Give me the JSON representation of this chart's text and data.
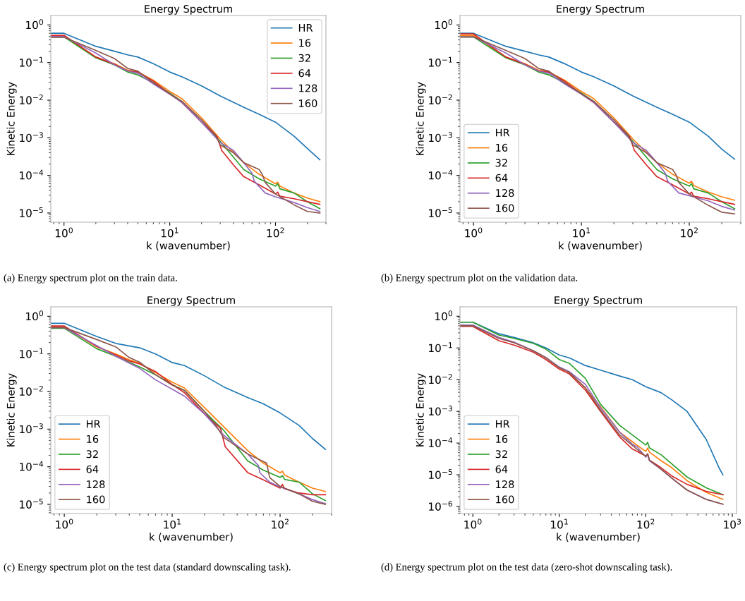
{
  "chart_data": [
    {
      "type": "line",
      "title": "Energy Spectrum",
      "xlabel": "k (wavenumber)",
      "ylabel": "Kinetic Energy",
      "log": "xy",
      "legend": "top right",
      "xlim": [
        0.75,
        300
      ],
      "ylim": [
        5.7e-06,
        1.78
      ],
      "xticks": [
        {
          "value": 1,
          "label": "10$^{0}$"
        },
        {
          "value": 10,
          "label": "10$^{1}$"
        },
        {
          "value": 100,
          "label": "10$^{2}$"
        }
      ],
      "yticks": [
        {
          "value": 1e-05,
          "label": "10$^{−5}$"
        },
        {
          "value": 0.0001,
          "label": "10$^{−4}$"
        },
        {
          "value": 0.001,
          "label": "10$^{−3}$"
        },
        {
          "value": 0.01,
          "label": "10$^{−2}$"
        },
        {
          "value": 0.1,
          "label": "10$^{−1}$"
        },
        {
          "value": 1,
          "label": "10$^{0}$"
        }
      ],
      "annotations": [
        "(a) Energy spectrum plot on the train data."
      ],
      "series": [
        {
          "name": "HR",
          "color": "#1f77b4",
          "x": [
            0.76,
            1,
            2,
            3,
            4,
            5,
            7,
            10,
            13,
            20,
            30,
            50,
            70,
            100,
            150,
            200,
            263
          ],
          "values": [
            0.6,
            0.6,
            0.27,
            0.2,
            0.16,
            0.14,
            0.093,
            0.056,
            0.042,
            0.024,
            0.013,
            0.0065,
            0.0042,
            0.0026,
            0.0011,
            0.00052,
            0.00026
          ]
        },
        {
          "name": "16",
          "color": "#ff7f0e",
          "x": [
            0.76,
            1,
            2,
            3,
            4,
            5,
            7,
            10,
            13,
            20,
            30,
            50,
            70,
            100,
            105,
            110,
            150,
            200,
            263
          ],
          "values": [
            0.52,
            0.52,
            0.14,
            0.093,
            0.063,
            0.056,
            0.034,
            0.017,
            0.011,
            0.0034,
            0.00093,
            0.00022,
            0.000107,
            6e-05,
            6.6e-05,
            5.2e-05,
            3.4e-05,
            2.5e-05,
            2e-05
          ]
        },
        {
          "name": "32",
          "color": "#2ca02c",
          "x": [
            0.76,
            1,
            2,
            3,
            4,
            5,
            7,
            10,
            13,
            20,
            30,
            50,
            70,
            100,
            105,
            110,
            150,
            200,
            263
          ],
          "values": [
            0.48,
            0.48,
            0.133,
            0.087,
            0.056,
            0.047,
            0.029,
            0.0155,
            0.0093,
            0.0026,
            0.00081,
            0.000144,
            8.1e-05,
            5.2e-05,
            6e-05,
            4.4e-05,
            3.4e-05,
            2e-05,
            1.3e-05
          ]
        },
        {
          "name": "64",
          "color": "#d62728",
          "x": [
            0.76,
            1,
            2,
            3,
            4,
            5,
            7,
            10,
            13,
            20,
            28,
            31,
            40,
            50,
            70,
            100,
            105,
            110,
            150,
            200,
            263
          ],
          "values": [
            0.53,
            0.53,
            0.14,
            0.09,
            0.06,
            0.056,
            0.032,
            0.0148,
            0.0087,
            0.0026,
            0.00108,
            0.00046,
            0.00019,
            9.3e-05,
            5.6e-05,
            3.2e-05,
            3.6e-05,
            2.8e-05,
            2.4e-05,
            2e-05,
            1.7e-05
          ]
        },
        {
          "name": "128",
          "color": "#9467bd",
          "x": [
            0.76,
            1,
            2,
            3,
            4,
            5,
            7,
            10,
            13,
            20,
            30,
            40,
            50,
            60,
            63,
            80,
            100,
            150,
            200,
            263
          ],
          "values": [
            0.49,
            0.49,
            0.178,
            0.087,
            0.06,
            0.052,
            0.027,
            0.0144,
            0.0087,
            0.0026,
            0.00075,
            0.00046,
            0.00022,
            0.000115,
            7e-05,
            3.4e-05,
            2.7e-05,
            1.9e-05,
            1.4e-05,
            1.1e-05
          ]
        },
        {
          "name": "160",
          "color": "#8c564b",
          "x": [
            0.76,
            1,
            2,
            3,
            4,
            5,
            7,
            10,
            13,
            20,
            27,
            30,
            40,
            50,
            70,
            75,
            80,
            100,
            150,
            200,
            263
          ],
          "values": [
            0.47,
            0.47,
            0.21,
            0.128,
            0.07,
            0.059,
            0.029,
            0.0148,
            0.0093,
            0.003,
            0.0012,
            0.00065,
            0.0004,
            0.00022,
            0.000144,
            0.000107,
            6.5e-05,
            3.2e-05,
            1.65e-05,
            1.1e-05,
            1e-05
          ]
        }
      ]
    },
    {
      "type": "line",
      "title": "Energy Spectrum",
      "xlabel": "k (wavenumber)",
      "ylabel": "Kinetic Energy",
      "log": "xy",
      "legend": "bottom left",
      "xlim": [
        0.75,
        300
      ],
      "ylim": [
        5.7e-06,
        1.78
      ],
      "xticks": [
        {
          "value": 1,
          "label": "10$^{0}$"
        },
        {
          "value": 10,
          "label": "10$^{1}$"
        },
        {
          "value": 100,
          "label": "10$^{2}$"
        }
      ],
      "yticks": [
        {
          "value": 1e-05,
          "label": "10$^{−5}$"
        },
        {
          "value": 0.0001,
          "label": "10$^{−4}$"
        },
        {
          "value": 0.001,
          "label": "10$^{−3}$"
        },
        {
          "value": 0.01,
          "label": "10$^{−2}$"
        },
        {
          "value": 0.1,
          "label": "10$^{−1}$"
        },
        {
          "value": 1,
          "label": "10$^{0}$"
        }
      ],
      "annotations": [
        "(b) Energy spectrum plot on the validation data."
      ],
      "series": [
        {
          "name": "HR",
          "color": "#1f77b4",
          "x": [
            0.76,
            1,
            2,
            3,
            4,
            5,
            7,
            10,
            13,
            20,
            30,
            50,
            70,
            100,
            150,
            200,
            263
          ],
          "values": [
            0.6,
            0.6,
            0.27,
            0.2,
            0.16,
            0.14,
            0.093,
            0.056,
            0.042,
            0.024,
            0.013,
            0.0065,
            0.0042,
            0.0026,
            0.0011,
            0.0005,
            0.00027
          ]
        },
        {
          "name": "16",
          "color": "#ff7f0e",
          "x": [
            0.76,
            1,
            2,
            3,
            4,
            5,
            7,
            10,
            13,
            20,
            30,
            50,
            70,
            100,
            105,
            110,
            150,
            200,
            263
          ],
          "values": [
            0.53,
            0.53,
            0.14,
            0.093,
            0.063,
            0.056,
            0.034,
            0.017,
            0.011,
            0.0034,
            0.00093,
            0.00022,
            0.000107,
            6.2e-05,
            7e-05,
            5.4e-05,
            3.6e-05,
            2.7e-05,
            2.2e-05
          ]
        },
        {
          "name": "32",
          "color": "#2ca02c",
          "x": [
            0.76,
            1,
            2,
            3,
            4,
            5,
            7,
            10,
            13,
            20,
            30,
            50,
            70,
            100,
            105,
            110,
            150,
            200,
            263
          ],
          "values": [
            0.48,
            0.48,
            0.133,
            0.087,
            0.056,
            0.047,
            0.029,
            0.0155,
            0.0093,
            0.0026,
            0.00081,
            0.000144,
            8.1e-05,
            5.2e-05,
            6e-05,
            4.4e-05,
            3.4e-05,
            2e-05,
            1.3e-05
          ]
        },
        {
          "name": "64",
          "color": "#d62728",
          "x": [
            0.76,
            1,
            2,
            3,
            4,
            5,
            7,
            10,
            13,
            20,
            28,
            31,
            40,
            50,
            70,
            100,
            105,
            110,
            150,
            200,
            263
          ],
          "values": [
            0.58,
            0.58,
            0.14,
            0.09,
            0.06,
            0.056,
            0.032,
            0.0148,
            0.0087,
            0.0026,
            0.00108,
            0.00046,
            0.00019,
            9.3e-05,
            5.6e-05,
            3.2e-05,
            3.6e-05,
            2.8e-05,
            2.4e-05,
            2e-05,
            1.7e-05
          ]
        },
        {
          "name": "128",
          "color": "#9467bd",
          "x": [
            0.76,
            1,
            2,
            3,
            4,
            5,
            7,
            10,
            13,
            20,
            30,
            40,
            50,
            60,
            63,
            80,
            100,
            150,
            200,
            263
          ],
          "values": [
            0.48,
            0.48,
            0.178,
            0.087,
            0.06,
            0.052,
            0.027,
            0.0144,
            0.0087,
            0.0026,
            0.00075,
            0.00046,
            0.00022,
            0.000115,
            7e-05,
            3.4e-05,
            2.9e-05,
            2.1e-05,
            1.5e-05,
            1.2e-05
          ]
        },
        {
          "name": "160",
          "color": "#8c564b",
          "x": [
            0.76,
            1,
            2,
            3,
            4,
            5,
            7,
            10,
            13,
            20,
            27,
            30,
            40,
            50,
            70,
            75,
            80,
            100,
            150,
            200,
            263
          ],
          "values": [
            0.48,
            0.48,
            0.21,
            0.128,
            0.07,
            0.059,
            0.029,
            0.0148,
            0.0093,
            0.003,
            0.0012,
            0.00065,
            0.0004,
            0.00022,
            0.000144,
            0.000107,
            6.5e-05,
            3.2e-05,
            1.6e-05,
            1.05e-05,
            9.5e-06
          ]
        }
      ]
    },
    {
      "type": "line",
      "title": "Energy Spectrum",
      "xlabel": "k (wavenumber)",
      "ylabel": "Kinetic Energy",
      "log": "xy",
      "legend": "bottom left",
      "xlim": [
        0.75,
        300
      ],
      "ylim": [
        5.7e-06,
        1.78
      ],
      "xticks": [
        {
          "value": 1,
          "label": "10$^{0}$"
        },
        {
          "value": 10,
          "label": "10$^{1}$"
        },
        {
          "value": 100,
          "label": "10$^{2}$"
        }
      ],
      "yticks": [
        {
          "value": 1e-05,
          "label": "10$^{−5}$"
        },
        {
          "value": 0.0001,
          "label": "10$^{−4}$"
        },
        {
          "value": 0.001,
          "label": "10$^{−3}$"
        },
        {
          "value": 0.01,
          "label": "10$^{−2}$"
        },
        {
          "value": 0.1,
          "label": "10$^{−1}$"
        },
        {
          "value": 1,
          "label": "10$^{0}$"
        }
      ],
      "annotations": [
        "(c) Energy spectrum plot on the test data (standard downscaling task)."
      ],
      "series": [
        {
          "name": "HR",
          "color": "#1f77b4",
          "x": [
            0.76,
            1,
            2,
            3,
            5,
            7,
            10,
            13,
            20,
            30,
            50,
            70,
            100,
            150,
            200,
            263
          ],
          "values": [
            0.65,
            0.65,
            0.29,
            0.19,
            0.145,
            0.1,
            0.059,
            0.049,
            0.026,
            0.0133,
            0.0069,
            0.0047,
            0.0027,
            0.00125,
            0.00056,
            0.00029
          ]
        },
        {
          "name": "16",
          "color": "#ff7f0e",
          "x": [
            0.76,
            1,
            2,
            3,
            4,
            5,
            7,
            10,
            13,
            20,
            30,
            50,
            70,
            100,
            105,
            110,
            150,
            200,
            263
          ],
          "values": [
            0.52,
            0.52,
            0.154,
            0.1,
            0.07,
            0.056,
            0.032,
            0.0177,
            0.0124,
            0.0037,
            0.00116,
            0.00027,
            0.000125,
            6.9e-05,
            7.6e-05,
            6e-05,
            3.9e-05,
            2.7e-05,
            2.2e-05
          ]
        },
        {
          "name": "32",
          "color": "#2ca02c",
          "x": [
            0.76,
            1,
            2,
            3,
            4,
            5,
            7,
            10,
            13,
            20,
            30,
            50,
            70,
            100,
            105,
            110,
            150,
            200,
            263
          ],
          "values": [
            0.48,
            0.48,
            0.137,
            0.087,
            0.06,
            0.045,
            0.028,
            0.0153,
            0.0107,
            0.0029,
            0.00093,
            0.000144,
            8.1e-05,
            5.2e-05,
            5.8e-05,
            4.6e-05,
            3.9e-05,
            1.9e-05,
            1.26e-05
          ]
        },
        {
          "name": "64",
          "color": "#d62728",
          "x": [
            0.76,
            1,
            2,
            3,
            4,
            5,
            7,
            10,
            13,
            20,
            28,
            31,
            50,
            70,
            100,
            105,
            110,
            150,
            200,
            263
          ],
          "values": [
            0.55,
            0.55,
            0.158,
            0.093,
            0.065,
            0.054,
            0.034,
            0.0153,
            0.0093,
            0.0025,
            0.00107,
            0.00034,
            7e-05,
            4.5e-05,
            2.7e-05,
            3.4e-05,
            2.6e-05,
            2e-05,
            1.8e-05,
            1.8e-05
          ]
        },
        {
          "name": "128",
          "color": "#9467bd",
          "x": [
            0.76,
            1,
            2,
            3,
            4,
            5,
            7,
            10,
            13,
            20,
            30,
            50,
            63,
            65,
            80,
            100,
            150,
            200,
            263
          ],
          "values": [
            0.5,
            0.5,
            0.166,
            0.087,
            0.057,
            0.041,
            0.0205,
            0.0115,
            0.0075,
            0.0025,
            0.00069,
            0.00022,
            0.000107,
            6.9e-05,
            3.9e-05,
            2.9e-05,
            1.9e-05,
            1.33e-05,
            1.04e-05
          ]
        },
        {
          "name": "160",
          "color": "#8c564b",
          "x": [
            0.76,
            1,
            2,
            3,
            4,
            5,
            7,
            10,
            13,
            20,
            25,
            30,
            50,
            75,
            80,
            100,
            150,
            200,
            263
          ],
          "values": [
            0.5,
            0.5,
            0.24,
            0.154,
            0.08,
            0.06,
            0.028,
            0.0147,
            0.0107,
            0.0029,
            0.00133,
            0.0006,
            0.00022,
            0.000125,
            5.2e-05,
            3e-05,
            1.9e-05,
            1.2e-05,
            1e-05
          ]
        }
      ]
    },
    {
      "type": "line",
      "title": "Energy Spectrum",
      "xlabel": "k (wavenumber)",
      "ylabel": "Kinetic Energy",
      "log": "xy",
      "legend": "bottom left",
      "xlim": [
        0.71,
        1120
      ],
      "ylim": [
        6e-07,
        1.98
      ],
      "xticks": [
        {
          "value": 1,
          "label": "10$^{0}$"
        },
        {
          "value": 10,
          "label": "10$^{1}$"
        },
        {
          "value": 100,
          "label": "10$^{2}$"
        },
        {
          "value": 1000,
          "label": "10$^{3}$"
        }
      ],
      "yticks": [
        {
          "value": 1e-06,
          "label": "10$^{−6}$"
        },
        {
          "value": 1e-05,
          "label": "10$^{−5}$"
        },
        {
          "value": 0.0001,
          "label": "10$^{−4}$"
        },
        {
          "value": 0.001,
          "label": "10$^{−3}$"
        },
        {
          "value": 0.01,
          "label": "10$^{−2}$"
        },
        {
          "value": 0.1,
          "label": "10$^{−1}$"
        },
        {
          "value": 1,
          "label": "10$^{0}$"
        }
      ],
      "annotations": [
        "(d) Energy spectrum plot on the test data (zero-shot downscaling task)."
      ],
      "series": [
        {
          "name": "HR",
          "color": "#1f77b4",
          "x": [
            0.72,
            1,
            2,
            3,
            5,
            7,
            10,
            13,
            20,
            30,
            50,
            70,
            100,
            150,
            200,
            300,
            500,
            700,
            780
          ],
          "values": [
            0.65,
            0.65,
            0.28,
            0.215,
            0.146,
            0.1,
            0.06,
            0.049,
            0.028,
            0.02,
            0.013,
            0.01,
            0.006,
            0.0039,
            0.0023,
            0.001,
            0.00013,
            1.7e-05,
            1e-05
          ]
        },
        {
          "name": "16",
          "color": "#ff7f0e",
          "x": [
            13,
            20,
            30,
            50,
            70,
            95,
            100,
            105,
            110,
            150,
            200,
            300,
            500,
            780
          ],
          "values": [
            0.017,
            0.0055,
            0.0014,
            0.00022,
            0.00011,
            6e-05,
            5.5e-05,
            7e-05,
            5.2e-05,
            2.8e-05,
            1.67e-05,
            6.5e-06,
            2.8e-06,
            1.67e-06
          ]
        },
        {
          "name": "32",
          "color": "#2ca02c",
          "x": [
            0.72,
            1,
            2,
            3,
            5,
            7,
            10,
            13,
            20,
            25,
            30,
            50,
            70,
            100,
            105,
            110,
            150,
            200,
            300,
            500,
            780
          ],
          "values": [
            0.65,
            0.65,
            0.255,
            0.2,
            0.14,
            0.092,
            0.043,
            0.033,
            0.011,
            0.0039,
            0.00167,
            0.00036,
            0.00018,
            8.7e-05,
            0.000106,
            7.1e-05,
            4.3e-05,
            2.2e-05,
            8.5e-06,
            3.9e-06,
            2.35e-06
          ]
        },
        {
          "name": "64",
          "color": "#d62728",
          "x": [
            0.72,
            1,
            2,
            3,
            5,
            7,
            10,
            13,
            20,
            30,
            50,
            70,
            100,
            105,
            110,
            150,
            200,
            300,
            500,
            780
          ],
          "values": [
            0.48,
            0.48,
            0.17,
            0.123,
            0.074,
            0.043,
            0.0215,
            0.0153,
            0.0047,
            0.001,
            0.000154,
            6.5e-05,
            3.9e-05,
            4.6e-05,
            2.9e-05,
            1.67e-05,
            9.2e-06,
            5e-06,
            3e-06,
            2.35e-06
          ]
        },
        {
          "name": "128",
          "color": "#9467bd",
          "x": [
            0.72,
            1,
            2,
            3,
            5,
            7,
            10,
            13,
            20,
            30,
            50,
            70,
            80,
            100,
            105,
            110,
            150,
            200,
            300,
            500,
            780
          ],
          "values": [
            0.53,
            0.53,
            0.215,
            0.153,
            0.082,
            0.05,
            0.025,
            0.018,
            0.0071,
            0.0013,
            0.00022,
            9.1e-05,
            7.5e-05,
            3.6e-05,
            4.4e-05,
            2.8e-05,
            1.5e-05,
            7.8e-06,
            3.3e-06,
            1.67e-06,
            1.18e-06
          ]
        },
        {
          "name": "160",
          "color": "#8c564b",
          "x": [
            0.72,
            1,
            2,
            3,
            5,
            7,
            10,
            13,
            20,
            30,
            50,
            70,
            100,
            105,
            110,
            150,
            200,
            300,
            500,
            780
          ],
          "values": [
            0.5,
            0.5,
            0.2,
            0.146,
            0.082,
            0.049,
            0.024,
            0.017,
            0.0055,
            0.0011,
            0.00018,
            8.5e-05,
            3.8e-05,
            4.6e-05,
            2.9e-05,
            1.5e-05,
            7.8e-06,
            3.3e-06,
            1.67e-06,
            1.18e-06
          ]
        }
      ]
    }
  ]
}
